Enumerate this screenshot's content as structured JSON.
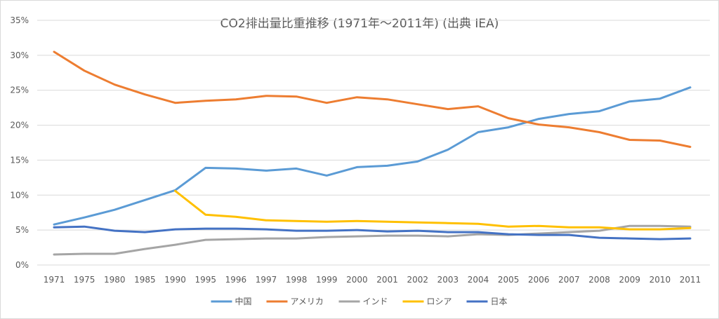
{
  "chart_data": {
    "type": "line",
    "title": "CO2排出量比重推移 (1971年～2011年) (出典 IEA)",
    "xlabel": "",
    "ylabel": "",
    "ylim": [
      0,
      35
    ],
    "y_ticks": [
      "0%",
      "5%",
      "10%",
      "15%",
      "20%",
      "25%",
      "30%",
      "35%"
    ],
    "y_tick_values": [
      0,
      5,
      10,
      15,
      20,
      25,
      30,
      35
    ],
    "grid": true,
    "legend_position": "bottom",
    "categories": [
      "1971",
      "1975",
      "1980",
      "1985",
      "1990",
      "1995",
      "1996",
      "1997",
      "1998",
      "1999",
      "2000",
      "2001",
      "2002",
      "2003",
      "2004",
      "2005",
      "2006",
      "2007",
      "2008",
      "2009",
      "2010",
      "2011"
    ],
    "series": [
      {
        "name": "中国",
        "color": "#5b9bd5",
        "values": [
          5.8,
          6.8,
          7.9,
          9.3,
          10.7,
          13.9,
          13.8,
          13.5,
          13.8,
          12.8,
          14.0,
          14.2,
          14.8,
          16.5,
          19.0,
          19.7,
          20.9,
          21.6,
          22.0,
          23.4,
          23.8,
          25.4
        ]
      },
      {
        "name": "アメリカ",
        "color": "#ed7d31",
        "values": [
          30.5,
          27.8,
          25.8,
          24.4,
          23.2,
          23.5,
          23.7,
          24.2,
          24.1,
          23.2,
          24.0,
          23.7,
          23.0,
          22.3,
          22.7,
          21.0,
          20.1,
          19.7,
          19.0,
          17.9,
          17.8,
          16.9
        ]
      },
      {
        "name": "インド",
        "color": "#a5a5a5",
        "values": [
          1.5,
          1.6,
          1.6,
          2.3,
          2.9,
          3.6,
          3.7,
          3.8,
          3.8,
          4.0,
          4.1,
          4.2,
          4.2,
          4.1,
          4.4,
          4.3,
          4.5,
          4.7,
          4.9,
          5.6,
          5.6,
          5.5
        ]
      },
      {
        "name": "ロシア",
        "color": "#ffc000",
        "values": [
          null,
          null,
          null,
          null,
          10.6,
          7.2,
          6.9,
          6.4,
          6.3,
          6.2,
          6.3,
          6.2,
          6.1,
          6.0,
          5.9,
          5.5,
          5.6,
          5.4,
          5.4,
          5.1,
          5.1,
          5.3
        ]
      },
      {
        "name": "日本",
        "color": "#4472c4",
        "values": [
          5.4,
          5.5,
          4.9,
          4.7,
          5.1,
          5.2,
          5.2,
          5.1,
          4.9,
          4.9,
          5.0,
          4.8,
          4.9,
          4.7,
          4.7,
          4.4,
          4.3,
          4.3,
          3.9,
          3.8,
          3.7,
          3.8
        ]
      }
    ]
  }
}
